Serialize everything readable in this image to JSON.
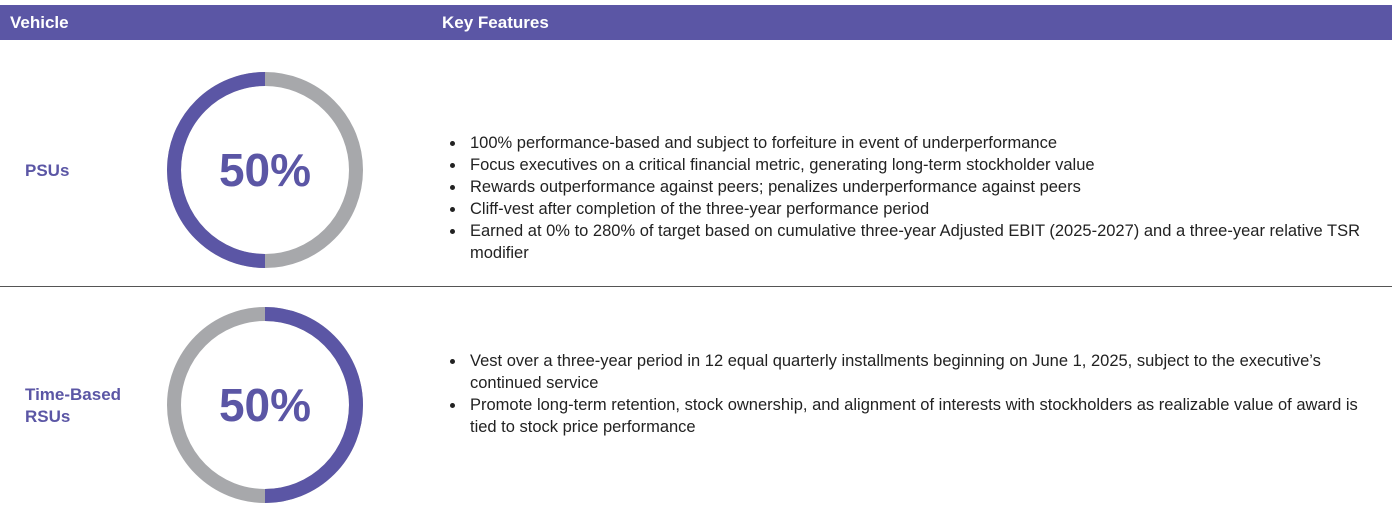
{
  "table": {
    "header": [
      "Vehicle",
      "Key Features"
    ],
    "rows": [
      {
        "vehicle": "PSUs",
        "percent": 50,
        "percent_label": "50%",
        "features": [
          "100% performance-based and subject to forfeiture in event of underperformance",
          "Focus executives on a critical financial metric, generating long-term stockholder value",
          "Rewards outperformance against peers; penalizes underperformance against peers",
          "Cliff-vest after completion of the three-year performance period",
          "Earned at 0% to 280% of target based on cumulative three-year Adjusted EBIT (2025-2027) and a three-year relative TSR modifier"
        ]
      },
      {
        "vehicle": "Time-Based RSUs",
        "percent": 50,
        "percent_label": "50%",
        "features": [
          "Vest over a three-year period in 12 equal quarterly installments beginning on June 1, 2025, subject to the executive’s continued service",
          "Promote long-term retention, stock ownership, and alignment of interests with stockholders as realizable value of award is tied to stock price performance"
        ]
      }
    ]
  }
}
